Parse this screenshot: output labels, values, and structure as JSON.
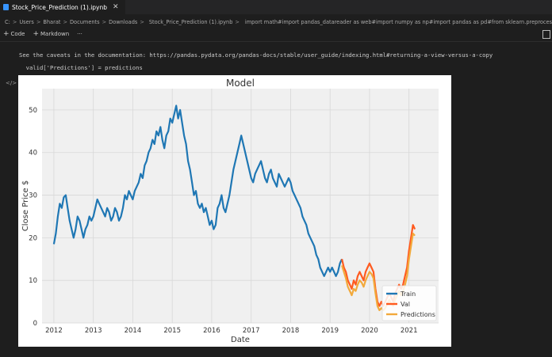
{
  "tab": {
    "title": "Stock_Price_Prediction (1).ipynb",
    "close_glyph": "✕"
  },
  "breadcrumb": {
    "items": [
      "C:",
      "Users",
      "Bharat",
      "Documents",
      "Downloads",
      "Stock_Price_Prediction (1).ipynb"
    ],
    "cell_preview": "import math#import pandas_datareader as web#import numpy as np#import pandas as pd#from sklearn.preprocessing import MinMaxScaler#fro"
  },
  "toolbar": {
    "code_label": "Code",
    "markdown_label": "Markdown",
    "more_label": "···"
  },
  "output": {
    "warning_line": "See the caveats in the documentation: https://pandas.pydata.org/pandas-docs/stable/user_guide/indexing.html#returning-a-view-versus-a-copy",
    "code_line": "  valid['Predictions'] = predictions",
    "icon_label": "</>"
  },
  "chart_data": {
    "type": "line",
    "title": "Model",
    "xlabel": "Date",
    "ylabel": "Close Price $",
    "xlim": [
      2011.7,
      2021.75
    ],
    "ylim": [
      0,
      55
    ],
    "xticks": [
      "2012",
      "2013",
      "2014",
      "2015",
      "2016",
      "2017",
      "2018",
      "2019",
      "2020",
      "2021"
    ],
    "yticks": [
      0,
      10,
      20,
      30,
      40,
      50
    ],
    "grid": true,
    "legend_position": "bottom-right",
    "colors": {
      "Train": "#1f77b4",
      "Val": "#ff5a1f",
      "Predictions": "#f2a93b"
    },
    "series": [
      {
        "name": "Train",
        "x": [
          2012.0,
          2012.05,
          2012.1,
          2012.15,
          2012.2,
          2012.25,
          2012.3,
          2012.35,
          2012.4,
          2012.45,
          2012.5,
          2012.55,
          2012.6,
          2012.65,
          2012.7,
          2012.75,
          2012.8,
          2012.85,
          2012.9,
          2012.95,
          2013.0,
          2013.05,
          2013.1,
          2013.15,
          2013.2,
          2013.25,
          2013.3,
          2013.35,
          2013.4,
          2013.45,
          2013.5,
          2013.55,
          2013.6,
          2013.65,
          2013.7,
          2013.75,
          2013.8,
          2013.85,
          2013.9,
          2013.95,
          2014.0,
          2014.05,
          2014.1,
          2014.15,
          2014.2,
          2014.25,
          2014.3,
          2014.35,
          2014.4,
          2014.45,
          2014.5,
          2014.55,
          2014.6,
          2014.65,
          2014.7,
          2014.75,
          2014.8,
          2014.85,
          2014.9,
          2014.95,
          2015.0,
          2015.05,
          2015.1,
          2015.15,
          2015.2,
          2015.25,
          2015.3,
          2015.35,
          2015.4,
          2015.45,
          2015.5,
          2015.55,
          2015.6,
          2015.65,
          2015.7,
          2015.75,
          2015.8,
          2015.85,
          2015.9,
          2015.95,
          2016.0,
          2016.05,
          2016.1,
          2016.15,
          2016.2,
          2016.25,
          2016.3,
          2016.35,
          2016.4,
          2016.45,
          2016.5,
          2016.55,
          2016.6,
          2016.65,
          2016.7,
          2016.75,
          2016.8,
          2016.85,
          2016.9,
          2016.95,
          2017.0,
          2017.05,
          2017.1,
          2017.15,
          2017.2,
          2017.25,
          2017.3,
          2017.35,
          2017.4,
          2017.45,
          2017.5,
          2017.55,
          2017.6,
          2017.65,
          2017.7,
          2017.75,
          2017.8,
          2017.85,
          2017.9,
          2017.95,
          2018.0,
          2018.05,
          2018.1,
          2018.15,
          2018.2,
          2018.25,
          2018.3,
          2018.35,
          2018.4,
          2018.45,
          2018.5,
          2018.55,
          2018.6,
          2018.65,
          2018.7,
          2018.75,
          2018.8,
          2018.85,
          2018.9,
          2018.95,
          2019.0,
          2019.05,
          2019.1,
          2019.15,
          2019.2,
          2019.25,
          2019.3
        ],
        "values": [
          18.5,
          21,
          25,
          28,
          27,
          29.5,
          30,
          27,
          24,
          22,
          20,
          22,
          25,
          24,
          22,
          20,
          22,
          23,
          25,
          24,
          25,
          27,
          29,
          28,
          27,
          26,
          25,
          27,
          26,
          24,
          25,
          27,
          26,
          24,
          25,
          27,
          30,
          29,
          31,
          30,
          29,
          31,
          32,
          33,
          35,
          34,
          37,
          38,
          40,
          41,
          43,
          42,
          45,
          44,
          46,
          43,
          41,
          44,
          45,
          48,
          47,
          49,
          51,
          48,
          50,
          47,
          44,
          42,
          38,
          36,
          33,
          30,
          31,
          28,
          27,
          28,
          26,
          27,
          25,
          23,
          24,
          22,
          23,
          27,
          28,
          30,
          27,
          26,
          28,
          30,
          33,
          36,
          38,
          40,
          42,
          44,
          42,
          40,
          38,
          36,
          34,
          33,
          35,
          36,
          37,
          38,
          36,
          34,
          33,
          35,
          36,
          34,
          33,
          32,
          35,
          34,
          33,
          32,
          33,
          34,
          33,
          31,
          30,
          29,
          28,
          27,
          25,
          24,
          23,
          21,
          20,
          19,
          18,
          16,
          15,
          13,
          12,
          11,
          12,
          13,
          12,
          13,
          12,
          11,
          12,
          14,
          15
        ]
      },
      {
        "name": "Val",
        "x": [
          2019.3,
          2019.35,
          2019.4,
          2019.45,
          2019.5,
          2019.55,
          2019.6,
          2019.65,
          2019.7,
          2019.75,
          2019.8,
          2019.85,
          2019.9,
          2019.95,
          2020.0,
          2020.05,
          2020.1,
          2020.15,
          2020.2,
          2020.25,
          2020.3,
          2020.35,
          2020.4,
          2020.45,
          2020.5,
          2020.55,
          2020.6,
          2020.65,
          2020.7,
          2020.75,
          2020.8,
          2020.85,
          2020.9,
          2020.95,
          2021.0,
          2021.05,
          2021.1,
          2021.15
        ],
        "values": [
          15,
          13,
          12,
          10,
          9,
          8,
          10,
          9,
          11,
          12,
          11,
          10,
          12,
          13,
          14,
          13,
          12,
          8,
          5,
          4,
          5,
          4,
          5,
          6,
          7,
          6,
          5,
          7,
          8,
          9,
          8,
          9,
          11,
          13,
          17,
          20,
          23,
          22
        ]
      },
      {
        "name": "Predictions",
        "x": [
          2019.3,
          2019.35,
          2019.4,
          2019.45,
          2019.5,
          2019.55,
          2019.6,
          2019.65,
          2019.7,
          2019.75,
          2019.8,
          2019.85,
          2019.9,
          2019.95,
          2020.0,
          2020.05,
          2020.1,
          2020.15,
          2020.2,
          2020.25,
          2020.3,
          2020.35,
          2020.4,
          2020.45,
          2020.5,
          2020.55,
          2020.6,
          2020.65,
          2020.7,
          2020.75,
          2020.8,
          2020.85,
          2020.9,
          2020.95,
          2021.0,
          2021.05,
          2021.1,
          2021.15
        ],
        "values": [
          13.5,
          12,
          10.5,
          8.5,
          7.5,
          6.5,
          8,
          7.5,
          9,
          10,
          9.5,
          8.5,
          10,
          11,
          12,
          11.5,
          10.5,
          7,
          4,
          3,
          3.5,
          3,
          3.5,
          4.5,
          5.5,
          4.5,
          4,
          5.5,
          6.5,
          7.5,
          6.5,
          7.5,
          9,
          11,
          15,
          18,
          21,
          20.5
        ]
      }
    ]
  }
}
